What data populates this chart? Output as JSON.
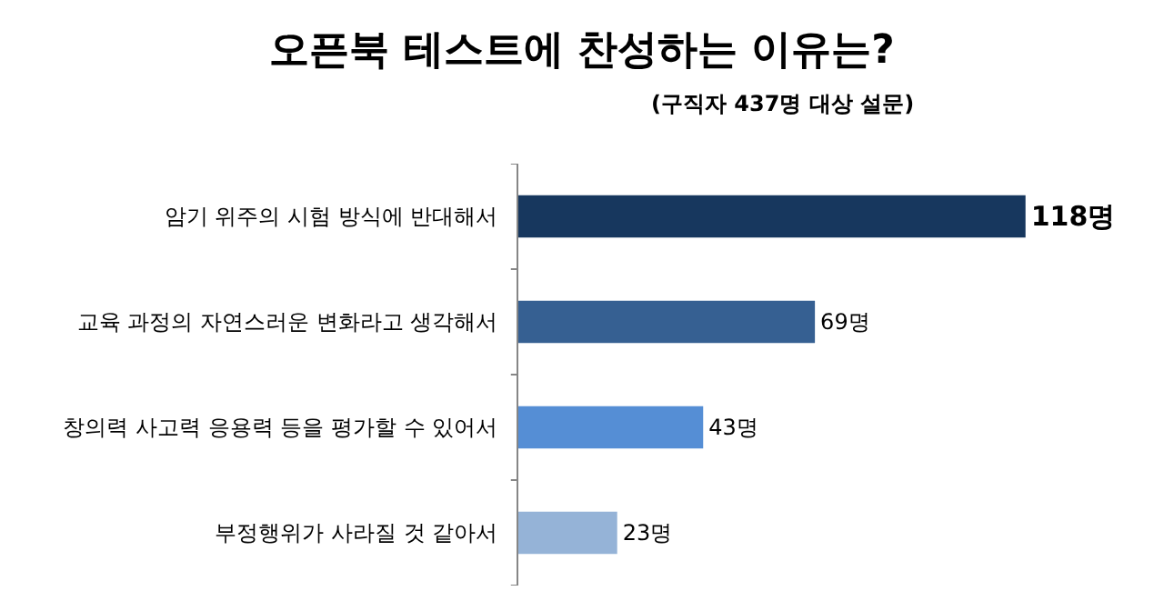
{
  "chart_data": {
    "type": "bar",
    "orientation": "horizontal",
    "title": "오픈북 테스트에 찬성하는 이유는?",
    "subtitle": "(구직자 437명 대상 설문)",
    "categories": [
      "암기 위주의 시험 방식에 반대해서",
      "교육 과정의 자연스러운 변화라고 생각해서",
      "창의력 사고력 응용력 등을 평가할 수 있어서",
      "부정행위가 사라질 것 같아서"
    ],
    "values": [
      118,
      69,
      43,
      23
    ],
    "colors": [
      "#17375e",
      "#366092",
      "#558ed5",
      "#95b3d7"
    ],
    "value_labels": [
      "118명",
      "69명",
      "43명",
      "23명"
    ]
  }
}
